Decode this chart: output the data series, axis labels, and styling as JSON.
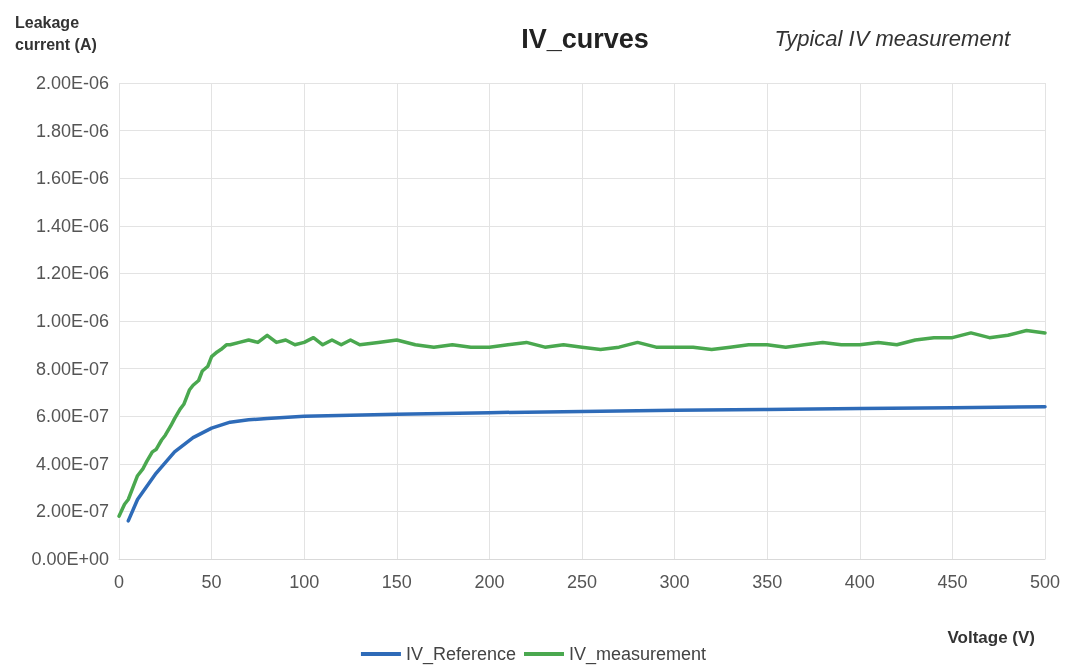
{
  "chart_data": {
    "type": "line",
    "title": "IV_curves",
    "subtitle": "Typical IV measurement",
    "xlabel": "Voltage (V)",
    "ylabel": "Leakage current (A)",
    "xlim": [
      0,
      500
    ],
    "xticks": [
      0,
      50,
      100,
      150,
      200,
      250,
      300,
      350,
      400,
      450,
      500
    ],
    "ylim": [
      0,
      2e-06
    ],
    "yticks": [
      {
        "value": 0,
        "label": "0.00E+00"
      },
      {
        "value": 2e-07,
        "label": "2.00E-07"
      },
      {
        "value": 4e-07,
        "label": "4.00E-07"
      },
      {
        "value": 6e-07,
        "label": "6.00E-07"
      },
      {
        "value": 8e-07,
        "label": "8.00E-07"
      },
      {
        "value": 1e-06,
        "label": "1.00E-06"
      },
      {
        "value": 1.2e-06,
        "label": "1.20E-06"
      },
      {
        "value": 1.4e-06,
        "label": "1.40E-06"
      },
      {
        "value": 1.6e-06,
        "label": "1.60E-06"
      },
      {
        "value": 1.8e-06,
        "label": "1.80E-06"
      },
      {
        "value": 2e-06,
        "label": "2.00E-06"
      }
    ],
    "grid": true,
    "legend": "bottom",
    "marker": "none",
    "line_style": "solid",
    "series": [
      {
        "name": "IV_Reference",
        "color": "#2e6bb8",
        "x": [
          5,
          10,
          20,
          30,
          40,
          50,
          60,
          70,
          80,
          100,
          150,
          200,
          250,
          300,
          350,
          400,
          450,
          500
        ],
        "values": [
          1.6e-07,
          2.5e-07,
          3.6e-07,
          4.5e-07,
          5.1e-07,
          5.5e-07,
          5.75e-07,
          5.85e-07,
          5.9e-07,
          6e-07,
          6.08e-07,
          6.15e-07,
          6.2e-07,
          6.25e-07,
          6.28e-07,
          6.32e-07,
          6.36e-07,
          6.4e-07
        ]
      },
      {
        "name": "IV_measurement",
        "color": "#4aa84f",
        "x": [
          0,
          3,
          5,
          8,
          10,
          13,
          15,
          18,
          20,
          23,
          25,
          28,
          30,
          33,
          35,
          38,
          40,
          43,
          45,
          48,
          50,
          53,
          55,
          58,
          60,
          65,
          70,
          75,
          80,
          85,
          90,
          95,
          100,
          105,
          110,
          115,
          120,
          125,
          130,
          140,
          150,
          160,
          170,
          180,
          190,
          200,
          210,
          220,
          230,
          240,
          250,
          260,
          270,
          280,
          290,
          300,
          310,
          320,
          330,
          340,
          350,
          360,
          370,
          380,
          390,
          400,
          410,
          420,
          430,
          440,
          450,
          460,
          470,
          480,
          490,
          500
        ],
        "values": [
          1.8e-07,
          2.3e-07,
          2.5e-07,
          3.1e-07,
          3.5e-07,
          3.8e-07,
          4.1e-07,
          4.5e-07,
          4.6e-07,
          5e-07,
          5.2e-07,
          5.6e-07,
          5.9e-07,
          6.3e-07,
          6.5e-07,
          7.1e-07,
          7.3e-07,
          7.5e-07,
          7.9e-07,
          8.1e-07,
          8.5e-07,
          8.7e-07,
          8.8e-07,
          9e-07,
          9e-07,
          9.1e-07,
          9.2e-07,
          9.1e-07,
          9.4e-07,
          9.1e-07,
          9.2e-07,
          9e-07,
          9.1e-07,
          9.3e-07,
          9e-07,
          9.2e-07,
          9e-07,
          9.2e-07,
          9e-07,
          9.1e-07,
          9.2e-07,
          9e-07,
          8.9e-07,
          9e-07,
          8.9e-07,
          8.9e-07,
          9e-07,
          9.1e-07,
          8.9e-07,
          9e-07,
          8.9e-07,
          8.8e-07,
          8.9e-07,
          9.1e-07,
          8.9e-07,
          8.9e-07,
          8.9e-07,
          8.8e-07,
          8.9e-07,
          9e-07,
          9e-07,
          8.9e-07,
          9e-07,
          9.1e-07,
          9e-07,
          9e-07,
          9.1e-07,
          9e-07,
          9.2e-07,
          9.3e-07,
          9.3e-07,
          9.5e-07,
          9.3e-07,
          9.4e-07,
          9.6e-07,
          9.5e-07
        ]
      }
    ]
  }
}
